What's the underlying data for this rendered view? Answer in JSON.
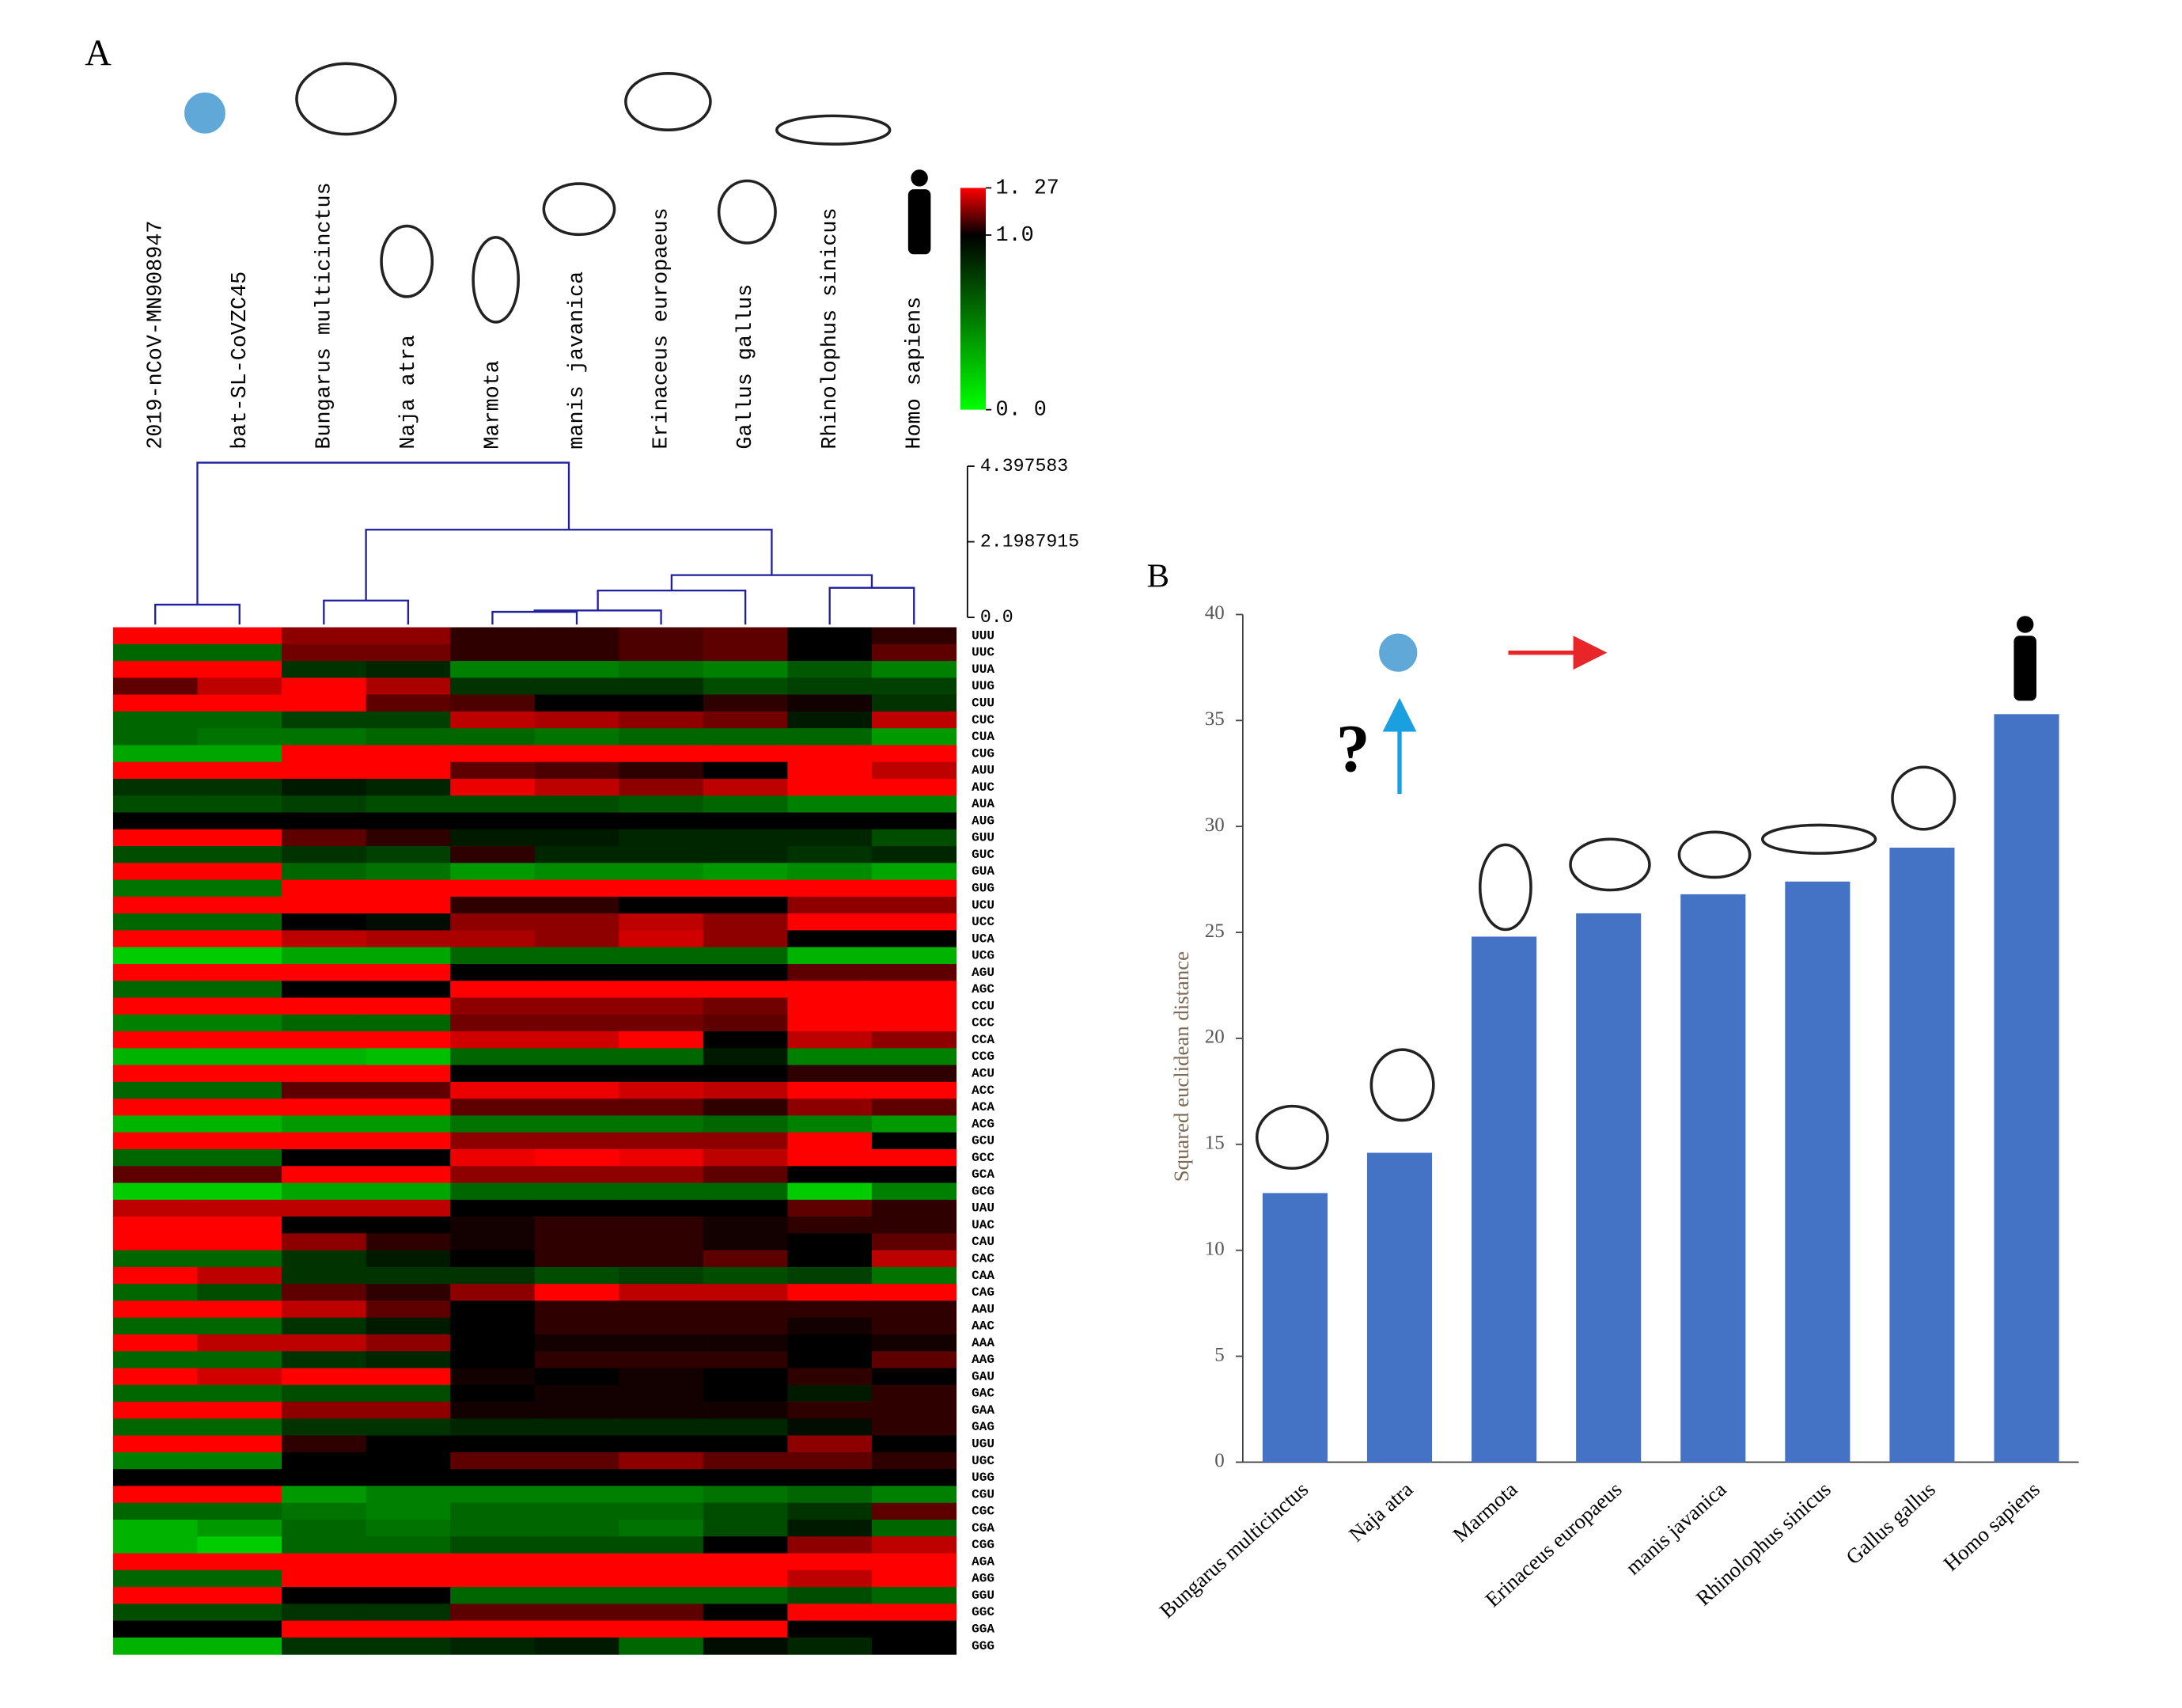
{
  "chart_data": [
    {
      "type": "heatmap",
      "label": "A",
      "columns": [
        "2019-nCoV-MN908947",
        "bat-SL-CoVZC45",
        "Bungarus multicinctus",
        "Naja atra",
        "Marmota",
        "manis javanica",
        "Erinaceus europaeus",
        "Gallus gallus",
        "Rhinolophus sinicus",
        "Homo sapiens"
      ],
      "rows": [
        "UUU",
        "UUC",
        "UUA",
        "UUG",
        "CUU",
        "CUC",
        "CUA",
        "CUG",
        "AUU",
        "AUC",
        "AUA",
        "AUG",
        "GUU",
        "GUC",
        "GUA",
        "GUG",
        "UCU",
        "UCC",
        "UCA",
        "UCG",
        "AGU",
        "AGC",
        "CCU",
        "CCC",
        "CCA",
        "CCG",
        "ACU",
        "ACC",
        "ACA",
        "ACG",
        "GCU",
        "GCC",
        "GCA",
        "GCG",
        "UAU",
        "UAC",
        "CAU",
        "CAC",
        "CAA",
        "CAG",
        "AAU",
        "AAC",
        "AAA",
        "AAG",
        "GAU",
        "GAC",
        "GAA",
        "GAG",
        "UGU",
        "UGC",
        "UGG",
        "CGU",
        "CGC",
        "CGA",
        "CGG",
        "AGA",
        "AGG",
        "GGU",
        "GGC",
        "GGA",
        "GGG"
      ],
      "values": [
        [
          1.27,
          1.27,
          1.15,
          1.15,
          1.05,
          1.05,
          1.08,
          1.1,
          1.0,
          1.05
        ],
        [
          0.6,
          0.6,
          1.12,
          1.12,
          1.05,
          1.05,
          1.08,
          1.1,
          1.0,
          1.1
        ],
        [
          1.27,
          1.27,
          0.8,
          0.85,
          0.5,
          0.5,
          0.55,
          0.5,
          0.65,
          0.5
        ],
        [
          1.1,
          1.2,
          1.27,
          1.18,
          0.8,
          0.8,
          0.8,
          0.7,
          0.75,
          0.75
        ],
        [
          1.27,
          1.27,
          1.27,
          1.1,
          1.08,
          1.0,
          1.0,
          1.05,
          1.02,
          0.8
        ],
        [
          0.6,
          0.6,
          0.75,
          0.75,
          1.2,
          1.18,
          1.15,
          1.12,
          0.9,
          1.2
        ],
        [
          0.6,
          0.55,
          0.55,
          0.6,
          0.6,
          0.55,
          0.6,
          0.6,
          0.6,
          0.4
        ],
        [
          0.35,
          0.35,
          1.27,
          1.27,
          1.27,
          1.27,
          1.27,
          1.27,
          1.27,
          1.27
        ],
        [
          1.27,
          1.27,
          1.27,
          1.27,
          1.1,
          1.08,
          1.05,
          1.0,
          1.27,
          1.2
        ],
        [
          0.8,
          0.8,
          0.9,
          0.85,
          1.25,
          1.2,
          1.15,
          1.2,
          1.27,
          1.27
        ],
        [
          0.7,
          0.7,
          0.75,
          0.7,
          0.7,
          0.7,
          0.65,
          0.6,
          0.5,
          0.5
        ],
        [
          1.0,
          1.0,
          1.0,
          1.0,
          1.0,
          1.0,
          1.0,
          1.0,
          1.0,
          1.0
        ],
        [
          1.27,
          1.27,
          1.1,
          1.05,
          0.9,
          0.9,
          0.85,
          0.85,
          0.85,
          0.7
        ],
        [
          0.7,
          0.7,
          0.8,
          0.75,
          1.05,
          0.85,
          0.85,
          0.85,
          0.8,
          0.85
        ],
        [
          1.27,
          1.27,
          0.6,
          0.55,
          0.4,
          0.45,
          0.45,
          0.4,
          0.45,
          0.35
        ],
        [
          0.55,
          0.55,
          1.27,
          1.27,
          1.27,
          1.27,
          1.27,
          1.27,
          1.27,
          1.27
        ],
        [
          1.27,
          1.27,
          1.27,
          1.27,
          1.05,
          1.05,
          1.0,
          1.0,
          1.15,
          1.15
        ],
        [
          0.6,
          0.6,
          1.0,
          0.95,
          1.15,
          1.15,
          1.2,
          1.15,
          1.27,
          1.27
        ],
        [
          1.27,
          1.27,
          1.2,
          1.18,
          1.18,
          1.15,
          1.22,
          1.15,
          1.0,
          1.0
        ],
        [
          0.2,
          0.2,
          0.35,
          0.35,
          0.6,
          0.6,
          0.6,
          0.6,
          0.3,
          0.3
        ],
        [
          1.27,
          1.27,
          1.27,
          1.27,
          1.0,
          1.0,
          1.0,
          1.0,
          1.1,
          1.1
        ],
        [
          0.6,
          0.6,
          1.0,
          1.0,
          1.27,
          1.27,
          1.27,
          1.27,
          1.27,
          1.27
        ],
        [
          1.27,
          1.27,
          1.27,
          1.27,
          1.15,
          1.15,
          1.15,
          1.12,
          1.27,
          1.27
        ],
        [
          0.5,
          0.5,
          0.6,
          0.6,
          1.12,
          1.12,
          1.12,
          1.1,
          1.27,
          1.27
        ],
        [
          1.27,
          1.27,
          1.27,
          1.27,
          1.22,
          1.22,
          1.27,
          1.0,
          1.2,
          1.15
        ],
        [
          0.3,
          0.3,
          0.3,
          0.25,
          0.6,
          0.6,
          0.6,
          0.9,
          0.5,
          0.5
        ],
        [
          1.27,
          1.27,
          1.27,
          1.27,
          1.0,
          1.0,
          1.0,
          1.0,
          1.05,
          1.05
        ],
        [
          0.6,
          0.6,
          1.1,
          1.1,
          1.25,
          1.25,
          1.22,
          1.2,
          1.27,
          1.27
        ],
        [
          1.27,
          1.27,
          1.27,
          1.27,
          1.1,
          1.1,
          1.1,
          1.05,
          1.15,
          1.1
        ],
        [
          0.3,
          0.3,
          0.4,
          0.4,
          0.55,
          0.55,
          0.55,
          0.6,
          0.5,
          0.4
        ],
        [
          1.27,
          1.27,
          1.27,
          1.27,
          1.15,
          1.15,
          1.15,
          1.15,
          1.27,
          1.0
        ],
        [
          0.6,
          0.6,
          1.0,
          1.0,
          1.25,
          1.27,
          1.25,
          1.2,
          1.27,
          1.27
        ],
        [
          1.1,
          1.1,
          1.27,
          1.27,
          1.15,
          1.15,
          1.15,
          1.1,
          1.0,
          1.0
        ],
        [
          0.2,
          0.2,
          0.35,
          0.35,
          0.6,
          0.6,
          0.6,
          0.6,
          0.2,
          0.5
        ],
        [
          1.2,
          1.2,
          1.2,
          1.2,
          1.0,
          1.0,
          1.0,
          1.0,
          1.1,
          1.05
        ],
        [
          1.27,
          1.27,
          1.0,
          1.0,
          1.02,
          1.05,
          1.05,
          1.02,
          1.05,
          1.05
        ],
        [
          1.27,
          1.27,
          1.15,
          1.05,
          1.02,
          1.05,
          1.05,
          1.02,
          1.0,
          1.1
        ],
        [
          0.6,
          0.6,
          0.8,
          0.9,
          1.0,
          1.05,
          1.05,
          1.1,
          1.0,
          1.2
        ],
        [
          1.27,
          1.2,
          0.8,
          0.8,
          0.8,
          0.7,
          0.75,
          0.7,
          0.75,
          0.55
        ],
        [
          0.6,
          0.7,
          1.1,
          1.05,
          1.15,
          1.27,
          1.2,
          1.2,
          1.27,
          1.27
        ],
        [
          1.27,
          1.27,
          1.2,
          1.1,
          1.0,
          1.05,
          1.05,
          1.05,
          1.05,
          1.05
        ],
        [
          0.6,
          0.6,
          0.8,
          0.9,
          1.0,
          1.05,
          1.05,
          1.05,
          1.02,
          1.05
        ],
        [
          1.27,
          1.2,
          1.2,
          1.15,
          1.0,
          1.02,
          1.02,
          1.02,
          1.0,
          1.02
        ],
        [
          0.6,
          0.6,
          0.8,
          0.85,
          1.0,
          1.05,
          1.05,
          1.05,
          1.0,
          1.1
        ],
        [
          1.27,
          1.22,
          1.27,
          1.27,
          1.02,
          1.0,
          1.02,
          1.0,
          1.05,
          1.0
        ],
        [
          0.6,
          0.6,
          0.7,
          0.7,
          1.0,
          1.02,
          1.02,
          1.0,
          0.9,
          1.05
        ],
        [
          1.27,
          1.27,
          1.15,
          1.15,
          1.02,
          1.02,
          1.02,
          1.02,
          1.05,
          1.05
        ],
        [
          0.6,
          0.6,
          0.8,
          0.8,
          0.85,
          0.85,
          0.85,
          0.85,
          0.95,
          1.05
        ],
        [
          1.27,
          1.27,
          1.05,
          1.0,
          1.0,
          1.0,
          1.0,
          1.0,
          1.15,
          1.0
        ],
        [
          0.5,
          0.5,
          1.0,
          1.0,
          1.1,
          1.1,
          1.15,
          1.1,
          1.1,
          1.05
        ],
        [
          1.0,
          1.0,
          1.0,
          1.0,
          1.0,
          1.0,
          1.0,
          1.0,
          1.0,
          1.0
        ],
        [
          1.27,
          1.27,
          0.4,
          0.5,
          0.5,
          0.5,
          0.5,
          0.55,
          0.6,
          0.5
        ],
        [
          0.6,
          0.6,
          0.55,
          0.5,
          0.6,
          0.6,
          0.6,
          0.7,
          0.8,
          1.1
        ],
        [
          0.3,
          0.4,
          0.6,
          0.55,
          0.6,
          0.6,
          0.55,
          0.7,
          0.9,
          0.6
        ],
        [
          0.3,
          0.2,
          0.6,
          0.6,
          0.7,
          0.7,
          0.7,
          1.0,
          1.15,
          1.2
        ],
        [
          1.27,
          1.27,
          1.27,
          1.27,
          1.27,
          1.27,
          1.27,
          1.27,
          1.27,
          1.27
        ],
        [
          0.6,
          0.6,
          1.27,
          1.27,
          1.27,
          1.27,
          1.27,
          1.27,
          1.2,
          1.27
        ],
        [
          1.27,
          1.27,
          1.0,
          1.0,
          0.6,
          0.6,
          0.6,
          0.6,
          0.7,
          0.6
        ],
        [
          0.7,
          0.7,
          0.8,
          0.8,
          1.1,
          1.1,
          1.1,
          1.0,
          1.27,
          1.27
        ],
        [
          1.0,
          1.0,
          1.27,
          1.27,
          1.27,
          1.27,
          1.27,
          1.27,
          1.0,
          1.0
        ],
        [
          0.3,
          0.3,
          0.8,
          0.8,
          0.85,
          0.9,
          0.6,
          0.95,
          0.85,
          1.0
        ]
      ],
      "clim": [
        0,
        1.27
      ],
      "cmid": 1.0,
      "colors": {
        "low": "#00ff00",
        "mid": "#000000",
        "high": "#ff0000"
      },
      "cticks": [
        {
          "value": 1.27,
          "label": "1. 27"
        },
        {
          "value": 1.0,
          "label": "1.0"
        },
        {
          "value": 0,
          "label": "0. 0"
        }
      ],
      "dendrogram": {
        "color": "#1f1f9f",
        "links": [
          [
            4,
            5,
            0.16
          ],
          [
            10,
            6,
            0.2
          ],
          [
            0,
            1,
            0.37
          ],
          [
            2,
            3,
            0.49
          ],
          [
            11,
            7,
            0.78
          ],
          [
            8,
            9,
            0.86
          ],
          [
            14,
            15,
            1.23
          ],
          [
            13,
            16,
            2.55
          ],
          [
            12,
            17,
            4.5
          ]
        ],
        "ylim": [
          0,
          4.397583
        ],
        "yticks": [
          4.397583,
          2.1987915,
          {
            "value": 0,
            "label": "0.0"
          }
        ]
      }
    },
    {
      "type": "bar",
      "label": "B",
      "categories": [
        "Bungarus multicinctus",
        "Naja atra",
        "Marmota",
        "Erinaceus europaeus",
        "manis javanica",
        "Rhinolophus sinicus",
        "Gallus gallus",
        "Homo sapiens"
      ],
      "values": [
        12.7,
        14.6,
        24.8,
        25.9,
        26.8,
        27.4,
        29.0,
        35.3
      ],
      "color": "#4472c4",
      "ylabel": "Squared euclidean distance",
      "ylim": [
        0,
        40
      ],
      "yticks": [
        0,
        5,
        10,
        15,
        20,
        25,
        30,
        35,
        40
      ],
      "annotations": [
        "?"
      ]
    }
  ]
}
